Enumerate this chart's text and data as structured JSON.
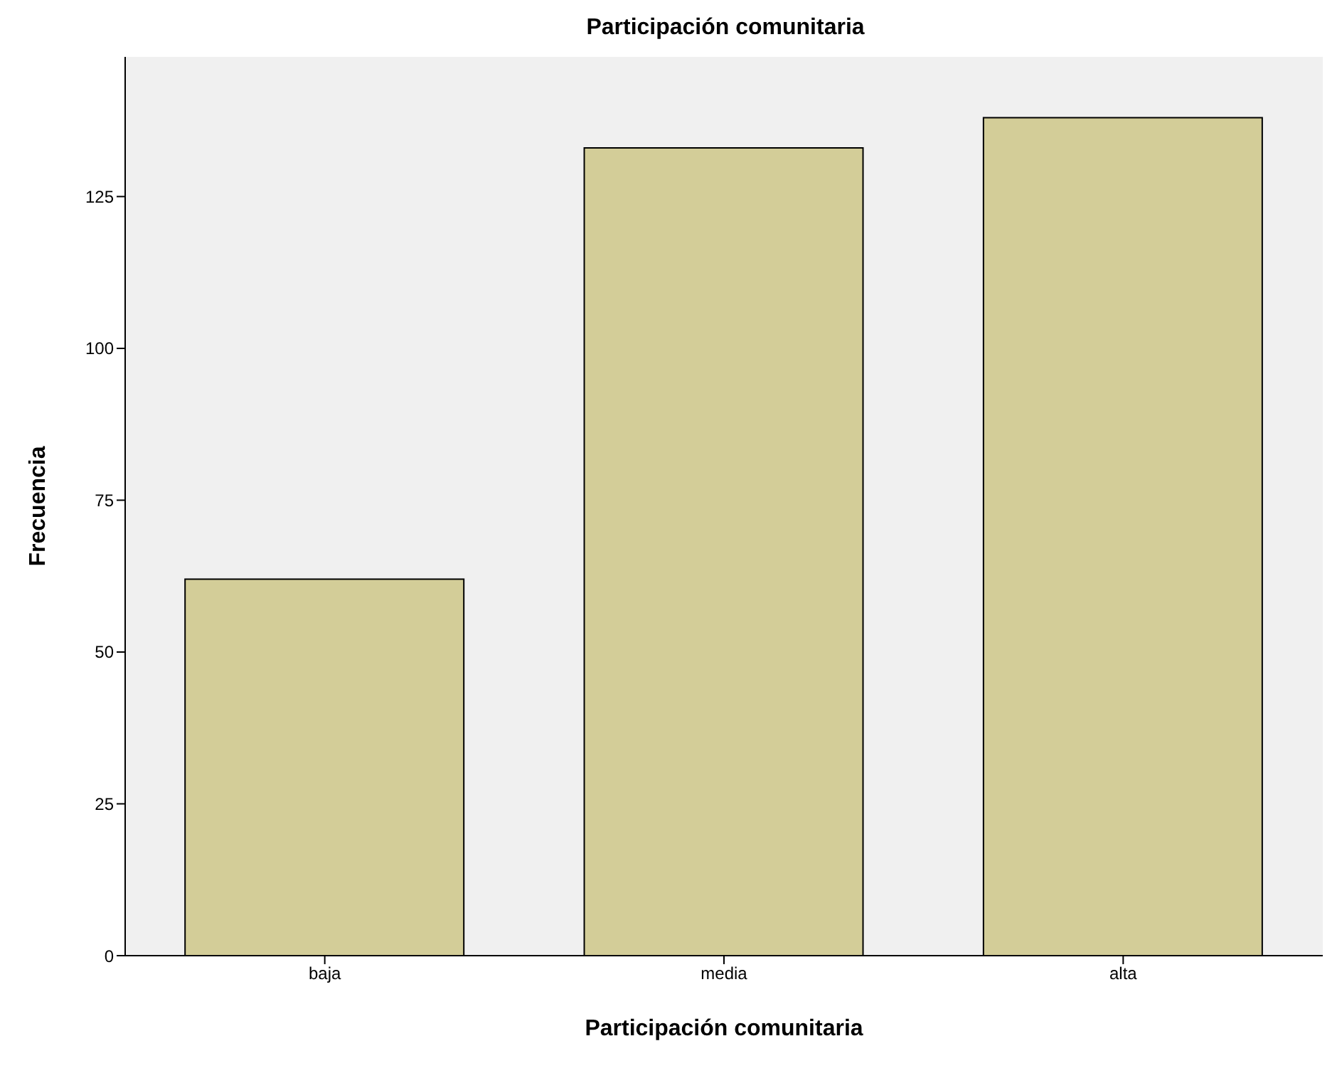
{
  "chart_data": {
    "type": "bar",
    "title": "Participación comunitaria",
    "xlabel": "Participación comunitaria",
    "ylabel": "Frecuencia",
    "categories": [
      "baja",
      "media",
      "alta"
    ],
    "values": [
      62,
      133,
      138
    ],
    "color": "#d3cd98",
    "ylim": [
      0,
      148
    ],
    "yticks": [
      0,
      25,
      50,
      75,
      100,
      125
    ],
    "grid": false
  }
}
